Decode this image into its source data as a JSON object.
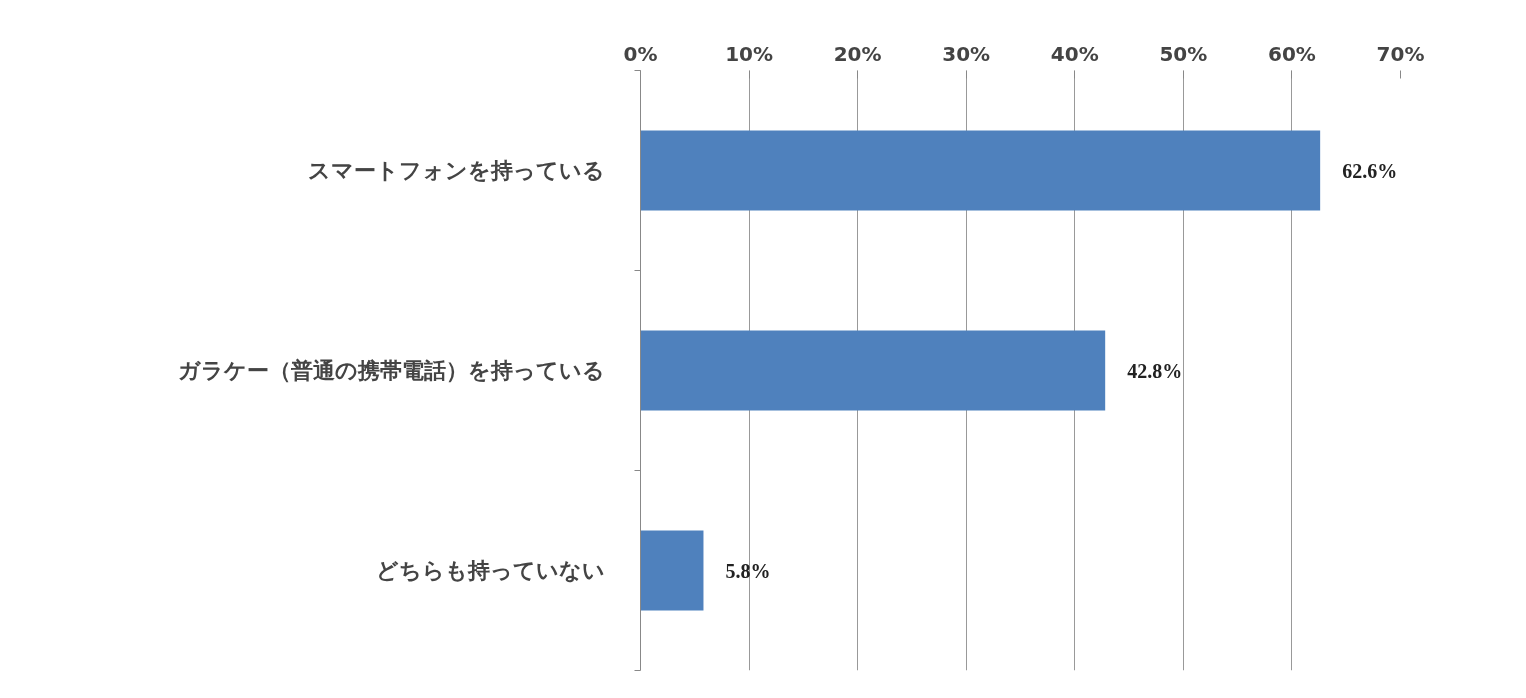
{
  "chart_data": {
    "type": "bar",
    "orientation": "horizontal",
    "categories": [
      "スマートフォンを持っている",
      "ガラケー（普通の携帯電話）を持っている",
      "どちらも持っていない"
    ],
    "values": [
      62.6,
      42.8,
      5.8
    ],
    "value_labels": [
      "62.6%",
      "42.8%",
      "5.8%"
    ],
    "color": "#4f81bd",
    "xlim": [
      0,
      70
    ],
    "xticks": [
      {
        "value": 0,
        "label": "0%"
      },
      {
        "value": 10,
        "label": "10%"
      },
      {
        "value": 20,
        "label": "20%"
      },
      {
        "value": 30,
        "label": "30%"
      },
      {
        "value": 40,
        "label": "40%"
      },
      {
        "value": 50,
        "label": "50%"
      },
      {
        "value": 60,
        "label": "60%"
      },
      {
        "value": 70,
        "label": "70%"
      }
    ],
    "grid": "x"
  }
}
